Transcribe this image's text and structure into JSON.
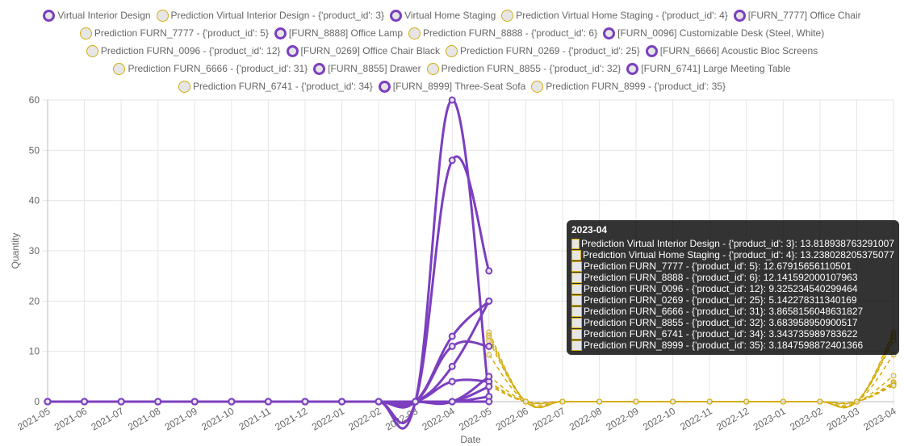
{
  "chart_data": {
    "type": "line",
    "xlabel": "Date",
    "ylabel": "Quantity",
    "ylim": [
      0,
      60
    ],
    "yticks": [
      0,
      10,
      20,
      30,
      40,
      50,
      60
    ],
    "grid": true,
    "legend": "top",
    "x": [
      "2021-05",
      "2021-06",
      "2021-07",
      "2021-08",
      "2021-09",
      "2021-10",
      "2021-11",
      "2021-12",
      "2022-01",
      "2022-02",
      "2022-03",
      "2022-04",
      "2022-05",
      "2022-06",
      "2022-07",
      "2022-08",
      "2022-09",
      "2022-10",
      "2022-11",
      "2022-12",
      "2023-01",
      "2023-02",
      "2023-03",
      "2023-04"
    ],
    "colors": {
      "actual": "#7b3fbf",
      "prediction": "#d4ac0d"
    },
    "series": [
      {
        "name": "Virtual Interior Design",
        "kind": "actual",
        "values": [
          0,
          0,
          0,
          0,
          0,
          0,
          0,
          0,
          0,
          0,
          0,
          60,
          1,
          null,
          null,
          null,
          null,
          null,
          null,
          null,
          null,
          null,
          null,
          null
        ]
      },
      {
        "name": "Prediction Virtual Interior Design - {'product_id': 3}",
        "kind": "prediction",
        "values": [
          null,
          null,
          null,
          null,
          null,
          null,
          null,
          null,
          null,
          null,
          null,
          null,
          13.8,
          0,
          0,
          0,
          0,
          0,
          0,
          0,
          0,
          0,
          0,
          13.818938763291007
        ]
      },
      {
        "name": "Virtual Home Staging",
        "kind": "actual",
        "values": [
          0,
          0,
          0,
          0,
          0,
          0,
          0,
          0,
          0,
          0,
          0,
          48,
          26,
          null,
          null,
          null,
          null,
          null,
          null,
          null,
          null,
          null,
          null,
          null
        ]
      },
      {
        "name": "Prediction Virtual Home Staging - {'product_id': 4}",
        "kind": "prediction",
        "values": [
          null,
          null,
          null,
          null,
          null,
          null,
          null,
          null,
          null,
          null,
          null,
          null,
          13.2,
          0,
          0,
          0,
          0,
          0,
          0,
          0,
          0,
          0,
          0,
          13.238028205375077
        ]
      },
      {
        "name": "[FURN_7777] Office Chair",
        "kind": "actual",
        "values": [
          0,
          0,
          0,
          0,
          0,
          0,
          0,
          0,
          0,
          0,
          0,
          13,
          20,
          null,
          null,
          null,
          null,
          null,
          null,
          null,
          null,
          null,
          null,
          null
        ]
      },
      {
        "name": "Prediction FURN_7777 - {'product_id': 5}",
        "kind": "prediction",
        "values": [
          null,
          null,
          null,
          null,
          null,
          null,
          null,
          null,
          null,
          null,
          null,
          null,
          12.7,
          0,
          0,
          0,
          0,
          0,
          0,
          0,
          0,
          0,
          0,
          12.67915656110501
        ]
      },
      {
        "name": "[FURN_8888] Office Lamp",
        "kind": "actual",
        "values": [
          0,
          0,
          0,
          0,
          0,
          0,
          0,
          0,
          0,
          0,
          0,
          11,
          11,
          null,
          null,
          null,
          null,
          null,
          null,
          null,
          null,
          null,
          null,
          null
        ]
      },
      {
        "name": "Prediction FURN_8888 - {'product_id': 6}",
        "kind": "prediction",
        "values": [
          null,
          null,
          null,
          null,
          null,
          null,
          null,
          null,
          null,
          null,
          null,
          null,
          12.1,
          0,
          0,
          0,
          0,
          0,
          0,
          0,
          0,
          0,
          0,
          12.141592000107963
        ]
      },
      {
        "name": "[FURN_0096] Customizable Desk (Steel, White)",
        "kind": "actual",
        "values": [
          0,
          0,
          0,
          0,
          0,
          0,
          0,
          0,
          0,
          0,
          0,
          7,
          20,
          null,
          null,
          null,
          null,
          null,
          null,
          null,
          null,
          null,
          null,
          null
        ]
      },
      {
        "name": "Prediction FURN_0096 - {'product_id': 12}",
        "kind": "prediction",
        "values": [
          null,
          null,
          null,
          null,
          null,
          null,
          null,
          null,
          null,
          null,
          null,
          null,
          9.3,
          0,
          0,
          0,
          0,
          0,
          0,
          0,
          0,
          0,
          0,
          9.325234540299464
        ]
      },
      {
        "name": "[FURN_0269] Office Chair Black",
        "kind": "actual",
        "values": [
          0,
          0,
          0,
          0,
          0,
          0,
          0,
          0,
          0,
          0,
          0,
          4,
          4,
          null,
          null,
          null,
          null,
          null,
          null,
          null,
          null,
          null,
          null,
          null
        ]
      },
      {
        "name": "Prediction FURN_0269 - {'product_id': 25}",
        "kind": "prediction",
        "values": [
          null,
          null,
          null,
          null,
          null,
          null,
          null,
          null,
          null,
          null,
          null,
          null,
          5.1,
          0,
          0,
          0,
          0,
          0,
          0,
          0,
          0,
          0,
          0,
          5.142278311340169
        ]
      },
      {
        "name": "[FURN_6666] Acoustic Bloc Screens",
        "kind": "actual",
        "values": [
          0,
          0,
          0,
          0,
          0,
          0,
          0,
          0,
          0,
          0,
          0,
          0,
          5,
          null,
          null,
          null,
          null,
          null,
          null,
          null,
          null,
          null,
          null,
          null
        ]
      },
      {
        "name": "Prediction FURN_6666 - {'product_id': 31}",
        "kind": "prediction",
        "values": [
          null,
          null,
          null,
          null,
          null,
          null,
          null,
          null,
          null,
          null,
          null,
          null,
          3.9,
          0,
          0,
          0,
          0,
          0,
          0,
          0,
          0,
          0,
          0,
          3.8658156048631827
        ]
      },
      {
        "name": "[FURN_8855] Drawer",
        "kind": "actual",
        "values": [
          0,
          0,
          0,
          0,
          0,
          0,
          0,
          0,
          0,
          0,
          0,
          0,
          3,
          null,
          null,
          null,
          null,
          null,
          null,
          null,
          null,
          null,
          null,
          null
        ]
      },
      {
        "name": "Prediction FURN_8855 - {'product_id': 32}",
        "kind": "prediction",
        "values": [
          null,
          null,
          null,
          null,
          null,
          null,
          null,
          null,
          null,
          null,
          null,
          null,
          3.7,
          0,
          0,
          0,
          0,
          0,
          0,
          0,
          0,
          0,
          0,
          3.683958950900517
        ]
      },
      {
        "name": "[FURN_6741] Large Meeting Table",
        "kind": "actual",
        "values": [
          0,
          0,
          0,
          0,
          0,
          0,
          0,
          0,
          0,
          0,
          0,
          0,
          1,
          null,
          null,
          null,
          null,
          null,
          null,
          null,
          null,
          null,
          null,
          null
        ]
      },
      {
        "name": "Prediction FURN_6741 - {'product_id': 34}",
        "kind": "prediction",
        "values": [
          null,
          null,
          null,
          null,
          null,
          null,
          null,
          null,
          null,
          null,
          null,
          null,
          3.3,
          0,
          0,
          0,
          0,
          0,
          0,
          0,
          0,
          0,
          0,
          3.343735989783622
        ]
      },
      {
        "name": "[FURN_8999] Three-Seat Sofa",
        "kind": "actual",
        "values": [
          0,
          0,
          0,
          0,
          0,
          0,
          0,
          0,
          0,
          0,
          0,
          0,
          0,
          null,
          null,
          null,
          null,
          null,
          null,
          null,
          null,
          null,
          null,
          null
        ]
      },
      {
        "name": "Prediction FURN_8999 - {'product_id': 35}",
        "kind": "prediction",
        "values": [
          null,
          null,
          null,
          null,
          null,
          null,
          null,
          null,
          null,
          null,
          null,
          null,
          3.2,
          0,
          0,
          0,
          0,
          0,
          0,
          0,
          0,
          0,
          0,
          3.1847598872401366
        ]
      }
    ],
    "legend_rows": [
      [
        0,
        1,
        2,
        3,
        4
      ],
      [
        5,
        6,
        7,
        8
      ],
      [
        9,
        10,
        11,
        12
      ],
      [
        13,
        14,
        15,
        16
      ],
      [
        17,
        18,
        19
      ]
    ],
    "tooltip": {
      "title": "2023-04",
      "rows": [
        "Prediction Virtual Interior Design - {'product_id': 3}: 13.818938763291007",
        "Prediction Virtual Home Staging - {'product_id': 4}: 13.238028205375077",
        "Prediction FURN_7777 - {'product_id': 5}: 12.67915656110501",
        "Prediction FURN_8888 - {'product_id': 6}: 12.141592000107963",
        "Prediction FURN_0096 - {'product_id': 12}: 9.325234540299464",
        "Prediction FURN_0269 - {'product_id': 25}: 5.142278311340169",
        "Prediction FURN_6666 - {'product_id': 31}: 3.8658156048631827",
        "Prediction FURN_8855 - {'product_id': 32}: 3.683958950900517",
        "Prediction FURN_6741 - {'product_id': 34}: 3.343735989783622",
        "Prediction FURN_8999 - {'product_id': 35}: 3.1847598872401366"
      ]
    }
  }
}
